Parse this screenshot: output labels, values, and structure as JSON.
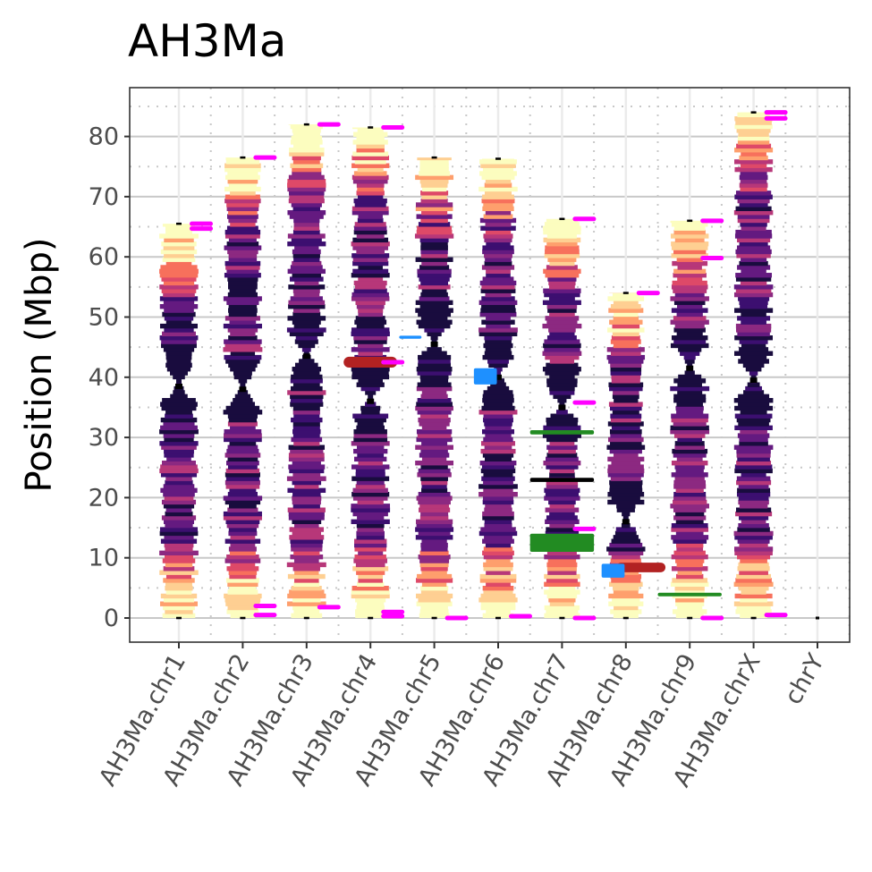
{
  "chart_data": {
    "type": "ideogram",
    "title": "AH3Ma",
    "ylabel": "Position (Mbp)",
    "xlabel": "",
    "ylim": [
      -4,
      89
    ],
    "yticks": [
      0,
      10,
      20,
      30,
      40,
      50,
      60,
      70,
      80
    ],
    "grid": true,
    "categories": [
      "AH3Ma.chr1",
      "AH3Ma.chr2",
      "AH3Ma.chr3",
      "AH3Ma.chr4",
      "AH3Ma.chr5",
      "AH3Ma.chr6",
      "AH3Ma.chr7",
      "AH3Ma.chr8",
      "AH3Ma.chr9",
      "AH3Ma.chrX",
      "chrY"
    ],
    "chromosomes": [
      {
        "name": "AH3Ma.chr1",
        "length": 65.5,
        "centromere": 38.5
      },
      {
        "name": "AH3Ma.chr2",
        "length": 76.5,
        "centromere": 38.0
      },
      {
        "name": "AH3Ma.chr3",
        "length": 82.0,
        "centromere": 43.5
      },
      {
        "name": "AH3Ma.chr4",
        "length": 81.5,
        "centromere": 36.0
      },
      {
        "name": "AH3Ma.chr5",
        "length": 76.5,
        "centromere": 45.5
      },
      {
        "name": "AH3Ma.chr6",
        "length": 76.3,
        "centromere": 40.0
      },
      {
        "name": "AH3Ma.chr7",
        "length": 66.3,
        "centromere": 35.0
      },
      {
        "name": "AH3Ma.chr8",
        "length": 54.0,
        "centromere": 16.0
      },
      {
        "name": "AH3Ma.chr9",
        "length": 66.0,
        "centromere": 41.5
      },
      {
        "name": "AH3Ma.chrX",
        "length": 84.0,
        "centromere": 39.5
      },
      {
        "name": "chrY",
        "length": 0.0,
        "centromere": 0.0
      }
    ],
    "telomere_marks": [
      {
        "chrom": 0,
        "pos": 65.5
      },
      {
        "chrom": 0,
        "pos": 64.7
      },
      {
        "chrom": 1,
        "pos": 76.5
      },
      {
        "chrom": 1,
        "pos": 2.0
      },
      {
        "chrom": 1,
        "pos": 0.5
      },
      {
        "chrom": 2,
        "pos": 82.0
      },
      {
        "chrom": 2,
        "pos": 1.8
      },
      {
        "chrom": 3,
        "pos": 81.5
      },
      {
        "chrom": 3,
        "pos": 42.5
      },
      {
        "chrom": 3,
        "pos": 1.0
      },
      {
        "chrom": 3,
        "pos": 0.3
      },
      {
        "chrom": 4,
        "pos": 0.0
      },
      {
        "chrom": 5,
        "pos": 0.3
      },
      {
        "chrom": 6,
        "pos": 66.3
      },
      {
        "chrom": 6,
        "pos": 35.8
      },
      {
        "chrom": 6,
        "pos": 14.8
      },
      {
        "chrom": 6,
        "pos": 0.0
      },
      {
        "chrom": 7,
        "pos": 54.0
      },
      {
        "chrom": 8,
        "pos": 66.0
      },
      {
        "chrom": 8,
        "pos": 59.8
      },
      {
        "chrom": 8,
        "pos": 0.0
      },
      {
        "chrom": 9,
        "pos": 84.0
      },
      {
        "chrom": 9,
        "pos": 83.0
      },
      {
        "chrom": 9,
        "pos": 0.5
      }
    ],
    "features": [
      {
        "chrom": 3,
        "start": 41.6,
        "end": 43.4,
        "color": "#b22222",
        "span": [
          -0.42,
          0.42
        ],
        "kind": "pill"
      },
      {
        "chrom": 7,
        "start": 7.6,
        "end": 9.2,
        "color": "#b22222",
        "span": [
          -0.15,
          0.62
        ],
        "kind": "pill"
      },
      {
        "chrom": 4,
        "start": 46.4,
        "end": 46.9,
        "color": "#1e90ff",
        "span": [
          -0.55,
          -0.2
        ],
        "kind": "bar"
      },
      {
        "chrom": 5,
        "start": 38.8,
        "end": 41.5,
        "color": "#1e90ff",
        "span": [
          -0.38,
          -0.02
        ],
        "kind": "bar"
      },
      {
        "chrom": 7,
        "start": 6.7,
        "end": 9.0,
        "color": "#1e90ff",
        "span": [
          -0.38,
          -0.02
        ],
        "kind": "bar"
      },
      {
        "chrom": 6,
        "start": 30.5,
        "end": 31.2,
        "color": "#228b22",
        "span": [
          -0.5,
          0.5
        ],
        "kind": "bar"
      },
      {
        "chrom": 6,
        "start": 22.6,
        "end": 23.3,
        "color": "#000000",
        "span": [
          -0.5,
          0.5
        ],
        "kind": "bar"
      },
      {
        "chrom": 6,
        "start": 11.0,
        "end": 14.0,
        "color": "#228b22",
        "span": [
          -0.5,
          0.5
        ],
        "kind": "bar"
      },
      {
        "chrom": 8,
        "start": 3.6,
        "end": 4.2,
        "color": "#228b22",
        "span": [
          -0.5,
          0.5
        ],
        "kind": "bar"
      }
    ],
    "colors": {
      "telomere": "#ff00ff",
      "centromere": "#000000",
      "grid_major": "#c8c8c8",
      "grid_minor": "#c8c8c8",
      "panel_border": "#333333",
      "heat_scale": [
        "#190c3e",
        "#3c0f70",
        "#641a80",
        "#8c2981",
        "#b73779",
        "#de4968",
        "#f7705c",
        "#fe9f6d",
        "#fecf92",
        "#fcfdbf"
      ]
    }
  }
}
